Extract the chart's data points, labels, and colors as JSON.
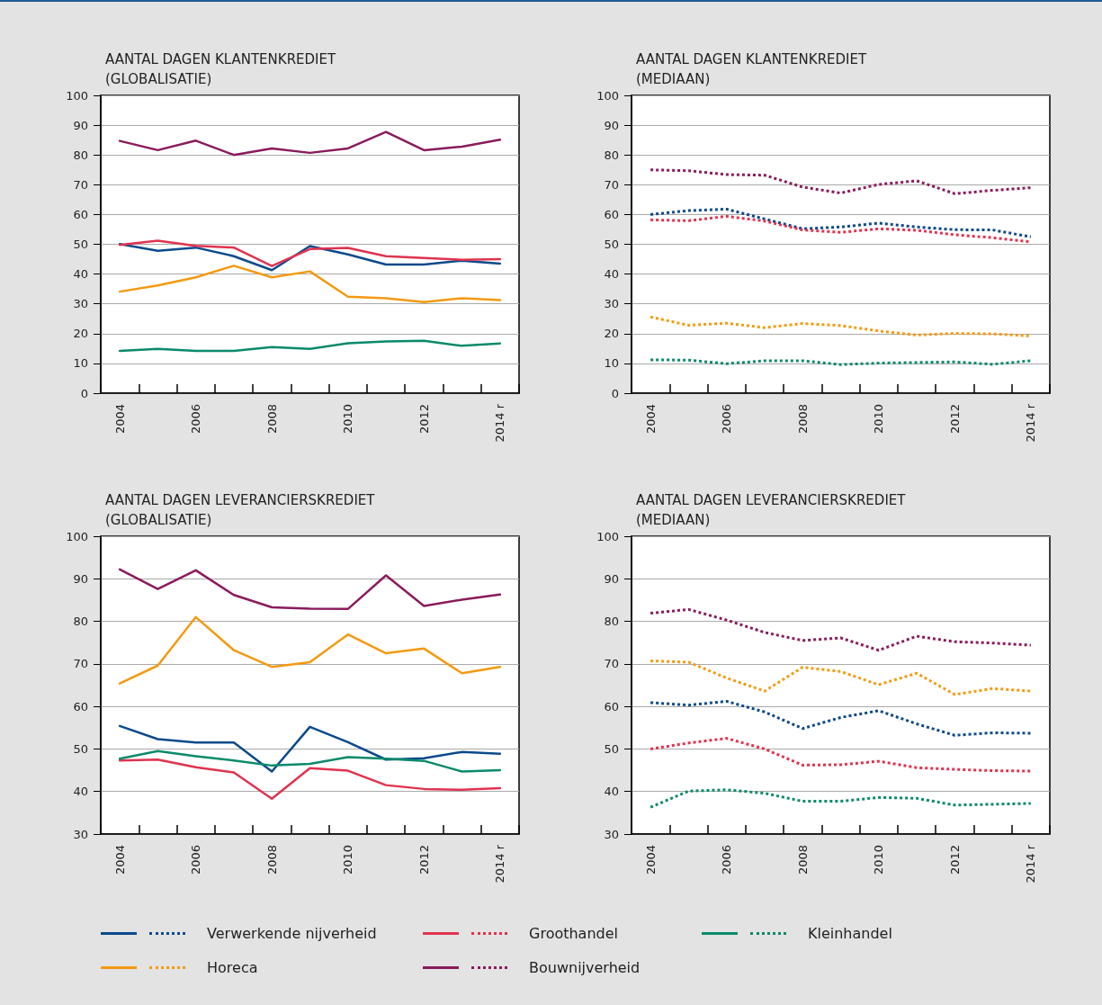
{
  "chart_data": [
    {
      "type": "line",
      "title": "AANTAL DAGEN KLANTENKREDIET\n(GLOBALISATIE)",
      "categories": [
        "2004",
        null,
        "2006",
        null,
        "2008",
        null,
        "2010",
        null,
        "2012",
        null,
        "2014 r"
      ],
      "ylim": [
        0,
        100
      ],
      "yticks": [
        0,
        10,
        20,
        30,
        40,
        50,
        60,
        70,
        80,
        90,
        100
      ],
      "grid": "y",
      "marker": "none",
      "line_style": "solid",
      "legend": "bottom",
      "series": [
        {
          "name": "Verwerkende nijverheid",
          "color": "#0b4a8b",
          "values": [
            50.1,
            47.8,
            48.9,
            46,
            41.3,
            49.4,
            46.6,
            43.2,
            43.2,
            44.5,
            43.5
          ]
        },
        {
          "name": "Groothandel",
          "color": "#e0334f",
          "values": [
            49.8,
            51.2,
            49.5,
            48.9,
            42.7,
            48.4,
            48.8,
            46,
            45.4,
            44.8,
            45
          ]
        },
        {
          "name": "Kleinhandel",
          "color": "#0a8a6a",
          "values": [
            14.2,
            14.9,
            14.2,
            14.2,
            15.5,
            14.9,
            16.8,
            17.4,
            17.6,
            15.9,
            16.7
          ]
        },
        {
          "name": "Horeca",
          "color": "#f39a10",
          "values": [
            34.1,
            36.2,
            38.9,
            42.8,
            38.9,
            40.9,
            32.4,
            31.9,
            30.6,
            31.9,
            31.3
          ]
        },
        {
          "name": "Bouwnijverheid",
          "color": "#8a1b5c",
          "values": [
            84.7,
            81.6,
            84.8,
            80,
            82.2,
            80.7,
            82.2,
            87.7,
            81.6,
            82.8,
            85.1
          ]
        }
      ]
    },
    {
      "type": "line",
      "title": "AANTAL DAGEN KLANTENKREDIET\n(MEDIAAN)",
      "categories": [
        "2004",
        null,
        "2006",
        null,
        "2008",
        null,
        "2010",
        null,
        "2012",
        null,
        "2014 r"
      ],
      "ylim": [
        0,
        100
      ],
      "yticks": [
        0,
        10,
        20,
        30,
        40,
        50,
        60,
        70,
        80,
        90,
        100
      ],
      "grid": "y",
      "marker": "none",
      "line_style": "dotted",
      "legend": "bottom",
      "series": [
        {
          "color": "#0b4a8b",
          "values": [
            60,
            61.3,
            61.8,
            58.5,
            55.2,
            55.8,
            57.1,
            55.8,
            54.9,
            54.8,
            52.5
          ]
        },
        {
          "color": "#e0334f",
          "values": [
            58.2,
            57.9,
            59.4,
            57.8,
            54.8,
            54,
            55.2,
            54.7,
            53.2,
            52.2,
            50.8
          ]
        },
        {
          "color": "#0a8a6a",
          "values": [
            11.2,
            11.1,
            9.9,
            10.9,
            10.9,
            9.6,
            10.1,
            10.3,
            10.5,
            9.7,
            10.9
          ]
        },
        {
          "color": "#f39a10",
          "values": [
            25.6,
            22.8,
            23.5,
            22,
            23.4,
            22.7,
            20.9,
            19.5,
            20.1,
            19.9,
            19.2
          ]
        },
        {
          "color": "#8a1b5c",
          "values": [
            75,
            74.7,
            73.4,
            73.2,
            69.2,
            67.2,
            70.1,
            71.3,
            67,
            68.1,
            69
          ]
        }
      ]
    },
    {
      "type": "line",
      "title": "AANTAL DAGEN LEVERANCIERSKREDIET\n(GLOBALISATIE)",
      "categories": [
        "2004",
        null,
        "2006",
        null,
        "2008",
        null,
        "2010",
        null,
        "2012",
        null,
        "2014 r"
      ],
      "ylim": [
        30,
        100
      ],
      "yticks": [
        30,
        40,
        50,
        60,
        70,
        80,
        90,
        100
      ],
      "grid": "y",
      "marker": "none",
      "line_style": "solid",
      "legend": "bottom",
      "series": [
        {
          "color": "#0b4a8b",
          "values": [
            55.4,
            52.3,
            51.5,
            51.5,
            44.7,
            55.2,
            51.6,
            47.5,
            47.8,
            49.3,
            48.9
          ]
        },
        {
          "color": "#e0334f",
          "values": [
            47.3,
            47.5,
            45.7,
            44.5,
            38.3,
            45.5,
            44.9,
            41.5,
            40.6,
            40.4,
            40.8
          ]
        },
        {
          "color": "#0a8a6a",
          "values": [
            47.7,
            49.5,
            48.3,
            47.3,
            46.1,
            46.5,
            48.1,
            47.7,
            47.2,
            44.7,
            45
          ]
        },
        {
          "color": "#f39a10",
          "values": [
            65.4,
            69.6,
            81,
            73.2,
            69.3,
            70.4,
            76.9,
            72.5,
            73.6,
            67.8,
            69.3
          ]
        },
        {
          "color": "#8a1b5c",
          "values": [
            92.2,
            87.6,
            92,
            86.2,
            83.3,
            83,
            82.9,
            90.8,
            83.6,
            85.1,
            86.3
          ]
        }
      ]
    },
    {
      "type": "line",
      "title": "AANTAL DAGEN LEVERANCIERSKREDIET\n(MEDIAAN)",
      "categories": [
        "2004",
        null,
        "2006",
        null,
        "2008",
        null,
        "2010",
        null,
        "2012",
        null,
        "2014 r"
      ],
      "ylim": [
        30,
        100
      ],
      "yticks": [
        30,
        40,
        50,
        60,
        70,
        80,
        90,
        100
      ],
      "grid": "y",
      "marker": "none",
      "line_style": "dotted",
      "legend": "bottom",
      "series": [
        {
          "color": "#0b4a8b",
          "values": [
            60.9,
            60.3,
            61.2,
            58.7,
            54.8,
            57.4,
            59,
            55.9,
            53.2,
            53.8,
            53.7
          ]
        },
        {
          "color": "#e0334f",
          "values": [
            50,
            51.4,
            52.5,
            50,
            46.2,
            46.3,
            47.1,
            45.6,
            45.2,
            44.9,
            44.8
          ]
        },
        {
          "color": "#0a8a6a",
          "values": [
            36.3,
            40.1,
            40.4,
            39.6,
            37.7,
            37.7,
            38.6,
            38.4,
            36.8,
            37,
            37.2
          ]
        },
        {
          "color": "#f39a10",
          "values": [
            70.7,
            70.4,
            66.7,
            63.6,
            69.2,
            68.2,
            65.1,
            67.8,
            62.8,
            64.2,
            63.6
          ]
        },
        {
          "color": "#8a1b5c",
          "values": [
            81.9,
            82.8,
            80.3,
            77.4,
            75.5,
            76.1,
            73.2,
            76.5,
            75.2,
            74.9,
            74.4
          ]
        }
      ]
    }
  ]
}
